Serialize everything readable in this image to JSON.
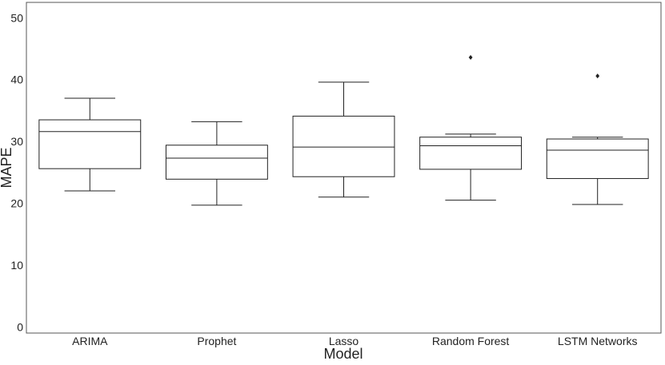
{
  "chart_data": {
    "type": "box",
    "xlabel": "Model",
    "ylabel": "MAPE",
    "ylim": [
      -1,
      52.5
    ],
    "yticks": [
      0,
      10,
      20,
      30,
      40,
      50
    ],
    "grid": false,
    "categories": [
      "ARIMA",
      "Prophet",
      "Lasso",
      "Random Forest",
      "LSTM Networks"
    ],
    "boxes": [
      {
        "name": "ARIMA",
        "whisker_low": 22.0,
        "q1": 25.6,
        "median": 31.6,
        "q3": 33.5,
        "whisker_high": 37.0,
        "outliers": []
      },
      {
        "name": "Prophet",
        "whisker_low": 19.7,
        "q1": 23.9,
        "median": 27.3,
        "q3": 29.4,
        "whisker_high": 33.2,
        "outliers": []
      },
      {
        "name": "Lasso",
        "whisker_low": 21.0,
        "q1": 24.3,
        "median": 29.1,
        "q3": 34.1,
        "whisker_high": 39.6,
        "outliers": []
      },
      {
        "name": "Random Forest",
        "whisker_low": 20.5,
        "q1": 25.5,
        "median": 29.3,
        "q3": 30.7,
        "whisker_high": 31.2,
        "outliers": [
          43.6
        ]
      },
      {
        "name": "LSTM Networks",
        "whisker_low": 19.8,
        "q1": 24.0,
        "median": 28.6,
        "q3": 30.4,
        "whisker_high": 30.7,
        "outliers": [
          40.6
        ]
      }
    ],
    "colors": {
      "stroke": "#222222",
      "fill": "#ffffff",
      "frame": "#555555"
    }
  }
}
